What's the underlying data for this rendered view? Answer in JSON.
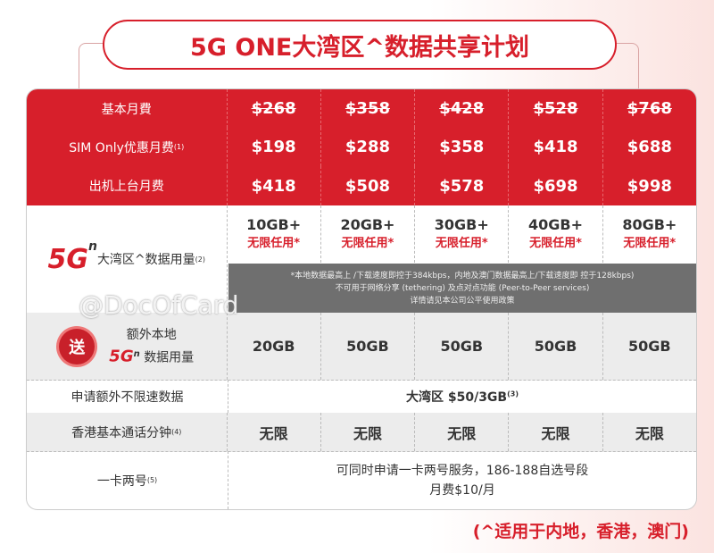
{
  "title": "5G ONE大湾区^数据共享计划",
  "rows": {
    "basic": {
      "label": "基本月費",
      "values": [
        "$268",
        "$358",
        "$428",
        "$528",
        "$768"
      ]
    },
    "simonly": {
      "label": "SIM Only优惠月费",
      "sup": "(1)",
      "values": [
        "$198",
        "$288",
        "$358",
        "$418",
        "$688"
      ]
    },
    "handset": {
      "label": "出机上台月费",
      "values": [
        "$418",
        "$508",
        "$578",
        "$698",
        "$998"
      ]
    },
    "data": {
      "brand": "5G",
      "brand_sup": "n",
      "label": "大湾区^数据用量",
      "sup": "(2)",
      "values": [
        "10GB+",
        "20GB+",
        "30GB+",
        "40GB+",
        "80GB+"
      ],
      "unlimited": "无限任用*"
    },
    "note": [
      "*本地数据最高上 /下载速度即控于384kbps，内地及澳门数据最高上/下载速度即 控于128kbps)",
      "不可用于网络分享 (tethering) 及点对点功能 (Peer-to-Peer services)",
      "详情请见本公司公平使用政策"
    ],
    "extra": {
      "badge": "送",
      "line1": "额外本地",
      "brand": "5G",
      "brand_sup": "n",
      "line2": "数据用量",
      "values": [
        "20GB",
        "50GB",
        "50GB",
        "50GB",
        "50GB"
      ]
    },
    "addon": {
      "label": "申请额外不限速数据",
      "value": "大湾区 $50/3GB",
      "sup": "(3)"
    },
    "voice": {
      "label": "香港基本通话分钟",
      "sup": "(4)",
      "values": [
        "无限",
        "无限",
        "无限",
        "无限",
        "无限"
      ]
    },
    "dual": {
      "label": "一卡两号",
      "sup": "(5)",
      "line1": "可同时申请一卡两号服务，186-188自选号段",
      "line2": "月费$10/月"
    }
  },
  "watermark": "@DocOfCard",
  "footer": "(^适用于内地，香港，澳门)",
  "colors": {
    "accent": "#d71f2b"
  }
}
